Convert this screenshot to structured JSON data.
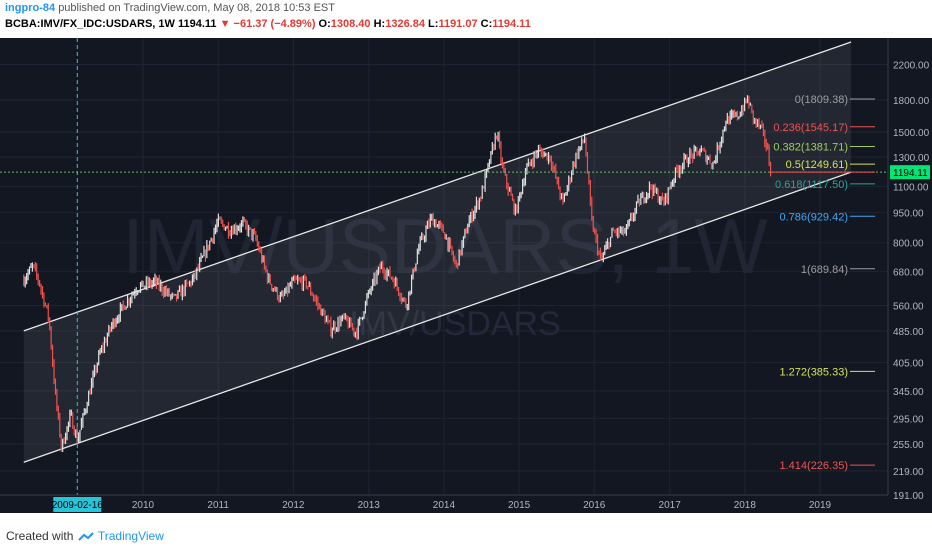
{
  "header": {
    "user": "ingpro-84",
    "published": "published on TradingView.com, May 08, 2018 10:53 EST",
    "symbol": "BCBA:IMV/FX_IDC:USDARS, 1W",
    "last": "1194.11",
    "change": "▼ −61.37 (−4.89%)",
    "o_label": "O:",
    "o_value": "1308.40",
    "h_label": "H:",
    "h_value": "1326.84",
    "l_label": "L:",
    "l_value": "1191.07",
    "c_label": "C:",
    "c_value": "1194.11"
  },
  "footer": {
    "created_with": "Created with",
    "brand": "TradingView"
  },
  "colors": {
    "background": "#131722",
    "price_up": "#e0e0e0",
    "price_down": "#ef5350",
    "crosshair": "#26c6da",
    "price_tag": "#00e676"
  },
  "chart_data": {
    "type": "candlestick",
    "watermark": "IMV/USDARS, 1W",
    "sub_watermark": "IMV/USDARS",
    "y_scale": "log",
    "ylim": [
      191,
      2500
    ],
    "y_ticks": [
      "2200.00",
      "1800.00",
      "1500.00",
      "1300.00",
      "1100.00",
      "950.00",
      "800.00",
      "680.00",
      "560.00",
      "485.00",
      "405.00",
      "345.00",
      "295.00",
      "255.00",
      "219.00",
      "191.00"
    ],
    "x_ticks": [
      "2010",
      "2011",
      "2012",
      "2013",
      "2014",
      "2015",
      "2016",
      "2017",
      "2018",
      "2019"
    ],
    "crosshair_date": "2009-02-16",
    "last_price": "1194.11",
    "fib_levels": [
      {
        "label": "0(1809.38)",
        "value": 1809.38,
        "color": "#9e9e9e"
      },
      {
        "label": "0.236(1545.17)",
        "value": 1545.17,
        "color": "#ef5350"
      },
      {
        "label": "0.382(1381.71)",
        "value": 1381.71,
        "color": "#9ccc65"
      },
      {
        "label": "0.5(1249.61)",
        "value": 1249.61,
        "color": "#d4e157"
      },
      {
        "label": "0.618(1117.50)",
        "value": 1117.5,
        "color": "#26a69a"
      },
      {
        "label": "0.786(929.42)",
        "value": 929.42,
        "color": "#42a5f5"
      },
      {
        "label": "1(689.84)",
        "value": 689.84,
        "color": "#9e9e9e"
      },
      {
        "label": "1.272(385.33)",
        "value": 385.33,
        "color": "#d4e157"
      },
      {
        "label": "1.414(226.35)",
        "value": 226.35,
        "color": "#ef5350"
      }
    ],
    "channel": {
      "upper": [
        [
          "2008-06-01",
          485
        ],
        [
          "2019-06-01",
          2500
        ]
      ],
      "lower": [
        [
          "2008-06-01",
          230
        ],
        [
          "2019-06-01",
          1194
        ]
      ]
    },
    "price_path": [
      [
        "2008-06-01",
        650
      ],
      [
        "2008-07-15",
        700
      ],
      [
        "2008-08-15",
        640
      ],
      [
        "2008-10-01",
        520
      ],
      [
        "2008-11-01",
        340
      ],
      [
        "2008-12-01",
        250
      ],
      [
        "2009-01-15",
        300
      ],
      [
        "2009-02-16",
        260
      ],
      [
        "2009-04-01",
        320
      ],
      [
        "2009-06-01",
        420
      ],
      [
        "2009-08-01",
        500
      ],
      [
        "2009-10-01",
        560
      ],
      [
        "2009-12-01",
        620
      ],
      [
        "2010-03-01",
        640
      ],
      [
        "2010-06-01",
        580
      ],
      [
        "2010-09-01",
        650
      ],
      [
        "2010-11-01",
        760
      ],
      [
        "2011-01-01",
        900
      ],
      [
        "2011-03-01",
        860
      ],
      [
        "2011-05-01",
        890
      ],
      [
        "2011-07-01",
        820
      ],
      [
        "2011-09-01",
        650
      ],
      [
        "2011-11-01",
        580
      ],
      [
        "2012-01-01",
        640
      ],
      [
        "2012-03-01",
        640
      ],
      [
        "2012-05-01",
        560
      ],
      [
        "2012-07-01",
        490
      ],
      [
        "2012-09-01",
        520
      ],
      [
        "2012-11-01",
        480
      ],
      [
        "2013-01-01",
        600
      ],
      [
        "2013-03-01",
        700
      ],
      [
        "2013-05-01",
        650
      ],
      [
        "2013-07-01",
        560
      ],
      [
        "2013-09-01",
        780
      ],
      [
        "2013-11-01",
        920
      ],
      [
        "2014-01-01",
        850
      ],
      [
        "2014-03-01",
        700
      ],
      [
        "2014-05-01",
        900
      ],
      [
        "2014-07-01",
        1050
      ],
      [
        "2014-09-15",
        1500
      ],
      [
        "2014-10-15",
        1200
      ],
      [
        "2014-12-15",
        950
      ],
      [
        "2015-02-01",
        1200
      ],
      [
        "2015-04-01",
        1350
      ],
      [
        "2015-06-01",
        1300
      ],
      [
        "2015-08-01",
        1000
      ],
      [
        "2015-10-01",
        1300
      ],
      [
        "2015-11-15",
        1450
      ],
      [
        "2015-12-20",
        900
      ],
      [
        "2016-02-01",
        720
      ],
      [
        "2016-04-01",
        850
      ],
      [
        "2016-06-01",
        850
      ],
      [
        "2016-08-01",
        1000
      ],
      [
        "2016-10-01",
        1100
      ],
      [
        "2016-12-01",
        1000
      ],
      [
        "2017-02-01",
        1200
      ],
      [
        "2017-04-01",
        1300
      ],
      [
        "2017-06-01",
        1350
      ],
      [
        "2017-08-01",
        1250
      ],
      [
        "2017-10-01",
        1600
      ],
      [
        "2017-12-01",
        1650
      ],
      [
        "2018-01-15",
        1809
      ],
      [
        "2018-02-15",
        1600
      ],
      [
        "2018-03-15",
        1550
      ],
      [
        "2018-04-15",
        1400
      ],
      [
        "2018-05-08",
        1194
      ]
    ]
  }
}
